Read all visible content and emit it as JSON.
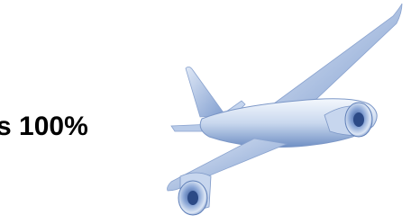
{
  "text": "s 100%"
}
